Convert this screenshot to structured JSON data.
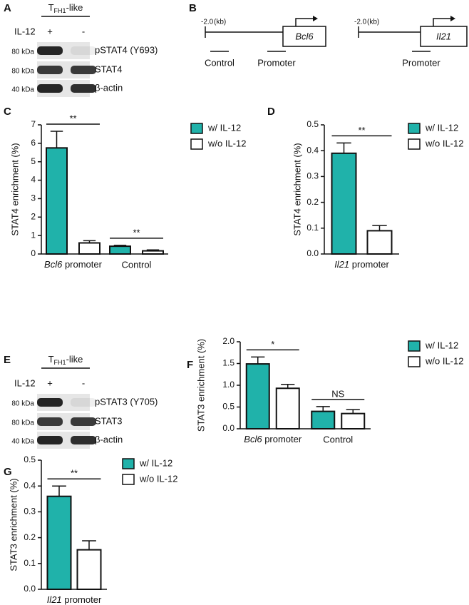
{
  "blots": [
    {
      "panel": "A",
      "header": {
        "main": "T",
        "sub": "FH1",
        "suffix": "-like"
      },
      "treatment": "IL-12",
      "lanes": [
        "+",
        "-"
      ],
      "rows": [
        {
          "marker": "80 kDa",
          "protein": "pSTAT4 (Y693)"
        },
        {
          "marker": "80 kDa",
          "protein": "STAT4"
        },
        {
          "marker": "40 kDa",
          "protein": "β-actin"
        }
      ]
    },
    {
      "panel": "E",
      "header": {
        "main": "T",
        "sub": "FH1",
        "suffix": "-like"
      },
      "treatment": "IL-12",
      "lanes": [
        "+",
        "-"
      ],
      "rows": [
        {
          "marker": "80 kDa",
          "protein": "pSTAT3 (Y705)"
        },
        {
          "marker": "80 kDa",
          "protein": "STAT3"
        },
        {
          "marker": "40 kDa",
          "protein": "β-actin"
        }
      ]
    }
  ],
  "diagram": {
    "panel": "B",
    "genes": [
      {
        "start": "-2.0",
        "unit": "(kb)",
        "name": "Bcl6",
        "regions": [
          "Control",
          "Promoter"
        ]
      },
      {
        "start": "-2.0",
        "unit": "(kb)",
        "name": "Il21",
        "regions": [
          "Promoter"
        ]
      }
    ]
  },
  "chart_data": [
    {
      "type": "bar",
      "panel": "C",
      "y_label": "STAT4 enrichment (%)",
      "categories": [
        "Bcl6 promoter",
        "Control"
      ],
      "series": [
        {
          "name": "w/ IL-12",
          "color": "#20b2aa",
          "values": [
            5.75,
            0.42
          ],
          "errors": [
            0.9,
            0.05
          ]
        },
        {
          "name": "w/o IL-12",
          "color": "#ffffff",
          "values": [
            0.6,
            0.17
          ],
          "errors": [
            0.12,
            0.05
          ]
        }
      ],
      "ylim": [
        0,
        7
      ],
      "yticks": [
        0,
        1,
        2,
        3,
        4,
        5,
        6,
        7
      ],
      "annotations": [
        "**",
        "**"
      ]
    },
    {
      "type": "bar",
      "panel": "D",
      "y_label": "STAT4 enrichment (%)",
      "categories": [
        "Il21 promoter"
      ],
      "series": [
        {
          "name": "w/ IL-12",
          "color": "#20b2aa",
          "values": [
            0.39
          ],
          "errors": [
            0.04
          ]
        },
        {
          "name": "w/o IL-12",
          "color": "#ffffff",
          "values": [
            0.09
          ],
          "errors": [
            0.02
          ]
        }
      ],
      "ylim": [
        0,
        0.5
      ],
      "yticks": [
        {
          "value": 0,
          "label": "0.0"
        },
        0.1,
        0.2,
        0.3,
        0.4,
        0.5
      ],
      "annotations": [
        "**"
      ]
    },
    {
      "type": "bar",
      "panel": "F",
      "y_label": "STAT3 enrichment (%)",
      "categories": [
        "Bcl6 promoter",
        "Control"
      ],
      "series": [
        {
          "name": "w/ IL-12",
          "color": "#20b2aa",
          "values": [
            1.49,
            0.4
          ],
          "errors": [
            0.16,
            0.11
          ]
        },
        {
          "name": "w/o IL-12",
          "color": "#ffffff",
          "values": [
            0.93,
            0.35
          ],
          "errors": [
            0.09,
            0.09
          ]
        }
      ],
      "ylim": [
        0,
        2
      ],
      "yticks": [
        {
          "value": 0,
          "label": "0.0"
        },
        0.5,
        {
          "value": 1,
          "label": "1.0"
        },
        1.5,
        {
          "value": 2,
          "label": "2.0"
        }
      ],
      "annotations": [
        "*",
        "NS"
      ]
    },
    {
      "type": "bar",
      "panel": "G",
      "y_label": "STAT3 enrichment (%)",
      "categories": [
        "Il21 promoter"
      ],
      "series": [
        {
          "name": "w/ IL-12",
          "color": "#20b2aa",
          "values": [
            0.36
          ],
          "errors": [
            0.04
          ]
        },
        {
          "name": "w/o IL-12",
          "color": "#ffffff",
          "values": [
            0.153
          ],
          "errors": [
            0.035
          ]
        }
      ],
      "ylim": [
        0,
        0.5
      ],
      "yticks": [
        {
          "value": 0,
          "label": "0.0"
        },
        0.1,
        0.2,
        0.3,
        0.4,
        0.5
      ],
      "annotations": [
        "**"
      ]
    }
  ]
}
